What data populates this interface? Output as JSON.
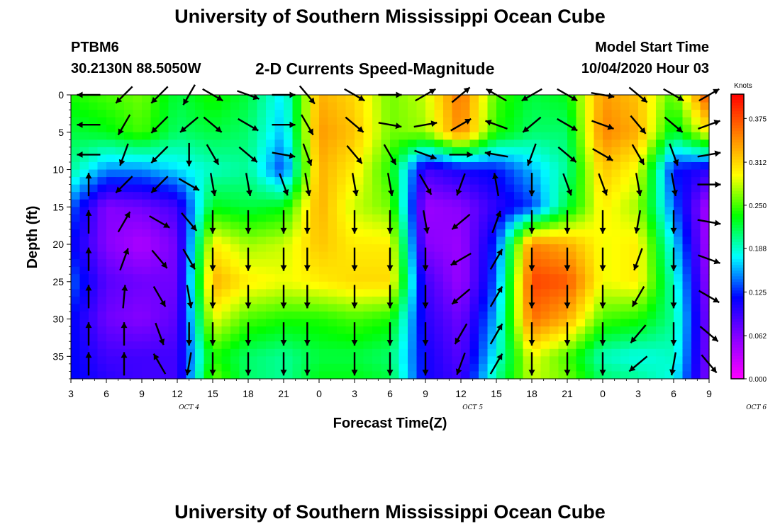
{
  "header": {
    "title": "University of Southern Mississippi Ocean Cube",
    "station_id": "PTBM6",
    "station_position": "30.2130N 88.5050W",
    "plot_title": "2-D Currents Speed-Magnitude",
    "model_start_label": "Model Start Time",
    "model_start_time": "10/04/2020 Hour 03"
  },
  "footer": {
    "title": "University of Southern Mississippi Ocean Cube"
  },
  "chart_data": {
    "type": "heatmap",
    "title": "2-D Currents Speed-Magnitude",
    "xlabel": "Forecast Time(Z)",
    "ylabel": "Depth (ft)",
    "x_tick_labels": [
      "3",
      "6",
      "9",
      "12",
      "15",
      "18",
      "21",
      "0",
      "3",
      "6",
      "9",
      "12",
      "15",
      "18",
      "21",
      "0",
      "3",
      "6",
      "9"
    ],
    "day_labels": [
      {
        "label": "OCT 4",
        "x_hours": 13
      },
      {
        "label": "OCT 5",
        "x_hours": 37
      },
      {
        "label": "OCT 6",
        "x_hours": 61
      }
    ],
    "x_hours_range": [
      3,
      57
    ],
    "x_hours_per_tick": 3,
    "y_tick_labels": [
      "0",
      "5",
      "10",
      "15",
      "20",
      "25",
      "30",
      "35"
    ],
    "ylim": [
      0,
      38
    ],
    "y_inverted": true,
    "colorbar": {
      "unit": "Knots",
      "tick_labels": [
        "0.000",
        "0.062",
        "0.125",
        "0.188",
        "0.250",
        "0.312",
        "0.375"
      ],
      "range": [
        0,
        0.41
      ],
      "colormap": [
        "#ff00ff",
        "#8a00ff",
        "#0000ff",
        "#00ffff",
        "#00ff00",
        "#ffff00",
        "#ff8000",
        "#ff0000"
      ]
    },
    "speed_knots": {
      "x_hours": [
        3,
        6,
        9,
        12,
        15,
        18,
        21,
        24,
        27,
        30,
        33,
        36,
        39,
        42,
        45,
        48,
        51,
        54,
        57
      ],
      "depth_ft": [
        0,
        5,
        10,
        15,
        20,
        25,
        30,
        35,
        38
      ],
      "grid": [
        [
          0.24,
          0.25,
          0.26,
          0.22,
          0.24,
          0.22,
          0.17,
          0.33,
          0.31,
          0.26,
          0.28,
          0.36,
          0.25,
          0.22,
          0.23,
          0.34,
          0.32,
          0.25,
          0.38
        ],
        [
          0.22,
          0.23,
          0.25,
          0.21,
          0.22,
          0.21,
          0.16,
          0.34,
          0.32,
          0.26,
          0.27,
          0.35,
          0.24,
          0.21,
          0.21,
          0.35,
          0.33,
          0.22,
          0.3
        ],
        [
          0.2,
          0.15,
          0.15,
          0.17,
          0.19,
          0.2,
          0.13,
          0.33,
          0.3,
          0.24,
          0.09,
          0.11,
          0.12,
          0.16,
          0.2,
          0.32,
          0.29,
          0.12,
          0.1
        ],
        [
          0.14,
          0.06,
          0.07,
          0.09,
          0.23,
          0.22,
          0.23,
          0.33,
          0.28,
          0.26,
          0.05,
          0.06,
          0.1,
          0.13,
          0.22,
          0.3,
          0.27,
          0.14,
          0.04
        ],
        [
          0.12,
          0.06,
          0.04,
          0.07,
          0.3,
          0.27,
          0.28,
          0.32,
          0.3,
          0.3,
          0.06,
          0.05,
          0.13,
          0.35,
          0.33,
          0.29,
          0.3,
          0.17,
          0.04
        ],
        [
          0.14,
          0.08,
          0.07,
          0.07,
          0.33,
          0.3,
          0.29,
          0.3,
          0.31,
          0.31,
          0.09,
          0.05,
          0.14,
          0.38,
          0.37,
          0.29,
          0.3,
          0.19,
          0.05
        ],
        [
          0.12,
          0.07,
          0.06,
          0.08,
          0.29,
          0.25,
          0.24,
          0.24,
          0.25,
          0.24,
          0.1,
          0.07,
          0.16,
          0.36,
          0.33,
          0.25,
          0.24,
          0.2,
          0.06
        ],
        [
          0.12,
          0.09,
          0.09,
          0.09,
          0.24,
          0.21,
          0.2,
          0.22,
          0.22,
          0.21,
          0.11,
          0.08,
          0.18,
          0.29,
          0.25,
          0.19,
          0.18,
          0.19,
          0.06
        ],
        [
          0.12,
          0.1,
          0.09,
          0.09,
          0.26,
          0.21,
          0.2,
          0.23,
          0.23,
          0.22,
          0.11,
          0.09,
          0.2,
          0.28,
          0.26,
          0.21,
          0.2,
          0.18,
          0.06
        ]
      ]
    },
    "direction_arrows": {
      "depth_ft": [
        0,
        4,
        8,
        12,
        17,
        22,
        27,
        32,
        36
      ],
      "columns": [
        {
          "x_hours": 4.5,
          "dir_deg": [
            270,
            270,
            270,
            0,
            0,
            0,
            0,
            0,
            0
          ]
        },
        {
          "x_hours": 7.5,
          "dir_deg": [
            225,
            210,
            200,
            225,
            30,
            20,
            5,
            0,
            0
          ]
        },
        {
          "x_hours": 10.5,
          "dir_deg": [
            225,
            225,
            225,
            225,
            120,
            140,
            150,
            160,
            330
          ]
        },
        {
          "x_hours": 13,
          "dir_deg": [
            210,
            230,
            180,
            120,
            140,
            150,
            170,
            180,
            190
          ]
        },
        {
          "x_hours": 15,
          "dir_deg": [
            120,
            130,
            150,
            170,
            180,
            180,
            180,
            180,
            180
          ]
        },
        {
          "x_hours": 18,
          "dir_deg": [
            110,
            120,
            130,
            170,
            180,
            180,
            180,
            180,
            180
          ]
        },
        {
          "x_hours": 21,
          "dir_deg": [
            90,
            90,
            100,
            160,
            180,
            180,
            180,
            180,
            180
          ]
        },
        {
          "x_hours": 23,
          "dir_deg": [
            140,
            150,
            160,
            170,
            180,
            180,
            180,
            180,
            180
          ]
        },
        {
          "x_hours": 27,
          "dir_deg": [
            120,
            130,
            140,
            170,
            180,
            180,
            180,
            180,
            180
          ]
        },
        {
          "x_hours": 30,
          "dir_deg": [
            90,
            100,
            150,
            170,
            180,
            180,
            180,
            180,
            180
          ]
        },
        {
          "x_hours": 33,
          "dir_deg": [
            60,
            80,
            110,
            150,
            170,
            180,
            180,
            180,
            180
          ]
        },
        {
          "x_hours": 36,
          "dir_deg": [
            50,
            60,
            90,
            200,
            230,
            240,
            230,
            210,
            200
          ]
        },
        {
          "x_hours": 39,
          "dir_deg": [
            300,
            290,
            280,
            350,
            20,
            30,
            30,
            30,
            30
          ]
        },
        {
          "x_hours": 42,
          "dir_deg": [
            240,
            230,
            200,
            180,
            180,
            180,
            180,
            180,
            180
          ]
        },
        {
          "x_hours": 45,
          "dir_deg": [
            120,
            120,
            130,
            160,
            180,
            180,
            180,
            180,
            180
          ]
        },
        {
          "x_hours": 48,
          "dir_deg": [
            100,
            110,
            120,
            160,
            180,
            180,
            180,
            180,
            180
          ]
        },
        {
          "x_hours": 51,
          "dir_deg": [
            130,
            140,
            150,
            170,
            190,
            200,
            210,
            220,
            230
          ]
        },
        {
          "x_hours": 54,
          "dir_deg": [
            120,
            130,
            160,
            170,
            180,
            180,
            180,
            180,
            190
          ]
        },
        {
          "x_hours": 57,
          "dir_deg": [
            60,
            70,
            80,
            90,
            100,
            110,
            120,
            130,
            140
          ]
        }
      ]
    }
  }
}
